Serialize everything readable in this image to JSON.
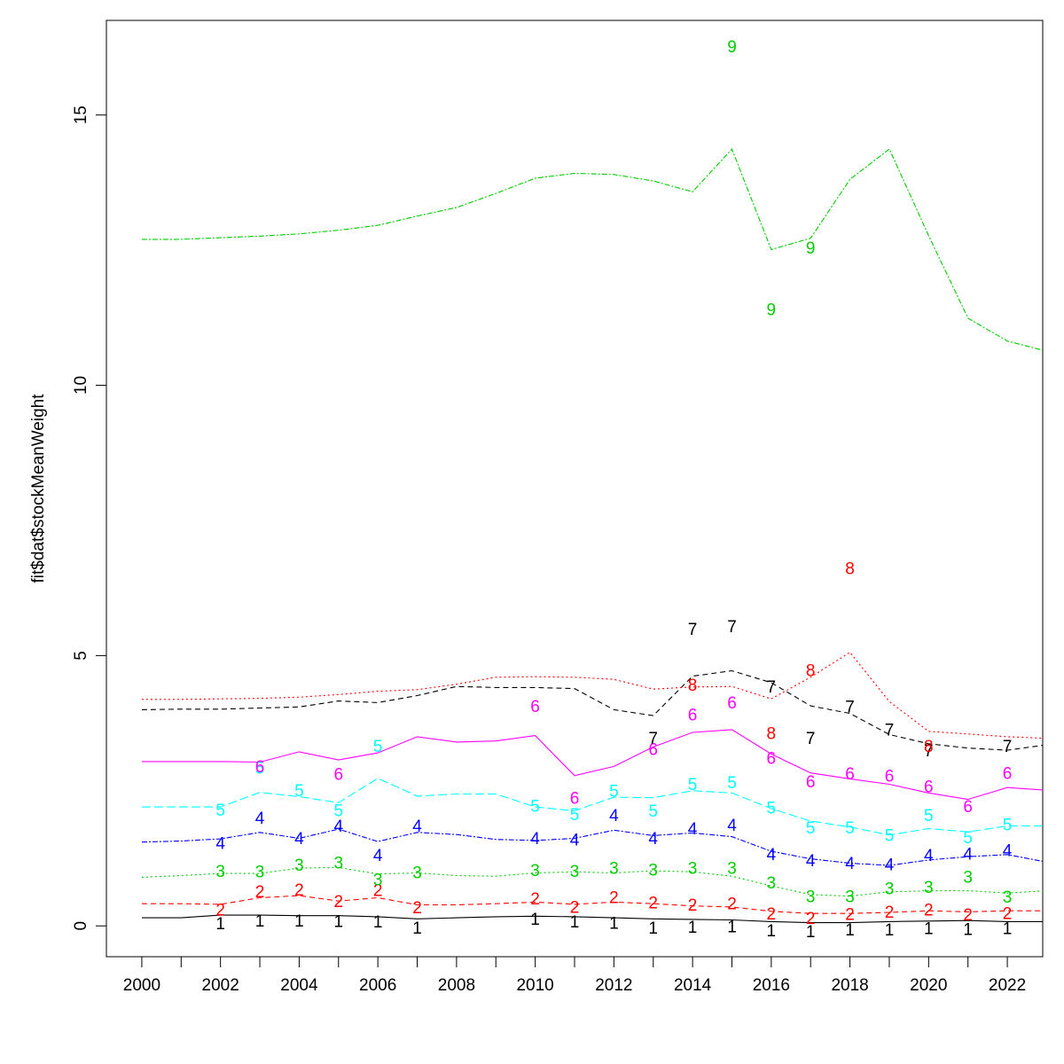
{
  "chart_data": {
    "type": "line",
    "title": "",
    "xlabel": "",
    "ylabel": "fit$dat$stockMeanWeight",
    "xlim": [
      1999.1,
      2022.9
    ],
    "ylim": [
      -0.57,
      16.75
    ],
    "x_ticks": [
      2000,
      2001,
      2002,
      2003,
      2004,
      2005,
      2006,
      2007,
      2008,
      2009,
      2010,
      2011,
      2012,
      2013,
      2014,
      2015,
      2016,
      2017,
      2018,
      2019,
      2020,
      2021,
      2022
    ],
    "x_tick_labels": [
      "2000",
      "",
      "2002",
      "",
      "2004",
      "",
      "2006",
      "",
      "2008",
      "",
      "2010",
      "",
      "2012",
      "",
      "2014",
      "",
      "2016",
      "",
      "2018",
      "",
      "2020",
      "",
      "2022"
    ],
    "y_ticks": [
      0,
      5,
      10,
      15
    ],
    "y_tick_labels": [
      "0",
      "5",
      "10",
      "15"
    ],
    "grid": false,
    "fitted": {
      "x": [
        2000,
        2001,
        2002,
        2003,
        2004,
        2005,
        2006,
        2007,
        2008,
        2009,
        2010,
        2011,
        2012,
        2013,
        2014,
        2015,
        2016,
        2017,
        2018,
        2019,
        2020,
        2021,
        2022,
        2023
      ],
      "series": [
        {
          "name": "1",
          "color": "#000000",
          "dash": "",
          "values": [
            0.15,
            0.15,
            0.2,
            0.2,
            0.19,
            0.19,
            0.17,
            0.13,
            0.15,
            0.17,
            0.18,
            0.17,
            0.15,
            0.13,
            0.12,
            0.11,
            0.08,
            0.06,
            0.06,
            0.08,
            0.09,
            0.1,
            0.08,
            0.08
          ]
        },
        {
          "name": "2",
          "color": "#ff0000",
          "dash": "6,4",
          "values": [
            0.41,
            0.41,
            0.4,
            0.52,
            0.56,
            0.46,
            0.52,
            0.39,
            0.39,
            0.41,
            0.44,
            0.4,
            0.44,
            0.41,
            0.37,
            0.35,
            0.27,
            0.23,
            0.23,
            0.25,
            0.28,
            0.26,
            0.28,
            0.28
          ]
        },
        {
          "name": "3",
          "color": "#00cd00",
          "dash": "2,3",
          "values": [
            0.9,
            0.93,
            0.97,
            0.97,
            1.07,
            1.08,
            0.96,
            0.98,
            0.93,
            0.92,
            0.98,
            1.0,
            0.98,
            1.02,
            1.0,
            0.92,
            0.74,
            0.58,
            0.55,
            0.63,
            0.65,
            0.65,
            0.61,
            0.65
          ]
        },
        {
          "name": "4",
          "color": "#0000ff",
          "dash": "6,2,2,2",
          "values": [
            1.55,
            1.57,
            1.61,
            1.73,
            1.62,
            1.79,
            1.56,
            1.73,
            1.69,
            1.6,
            1.58,
            1.62,
            1.77,
            1.67,
            1.72,
            1.65,
            1.38,
            1.24,
            1.16,
            1.12,
            1.22,
            1.28,
            1.32,
            1.18
          ]
        },
        {
          "name": "5",
          "color": "#00ffff",
          "dash": "10,4",
          "values": [
            2.2,
            2.2,
            2.2,
            2.47,
            2.39,
            2.28,
            2.73,
            2.4,
            2.44,
            2.44,
            2.2,
            2.13,
            2.38,
            2.37,
            2.5,
            2.46,
            2.17,
            1.94,
            1.83,
            1.68,
            1.8,
            1.74,
            1.85,
            1.85
          ]
        },
        {
          "name": "6",
          "color": "#ff00ff",
          "dash": "",
          "values": [
            3.04,
            3.04,
            3.04,
            3.03,
            3.22,
            3.07,
            3.2,
            3.5,
            3.4,
            3.42,
            3.52,
            2.78,
            2.95,
            3.31,
            3.58,
            3.63,
            3.18,
            2.83,
            2.72,
            2.62,
            2.46,
            2.34,
            2.56,
            2.51
          ]
        },
        {
          "name": "7",
          "color": "#000000",
          "dash": "6,4",
          "values": [
            4.0,
            4.01,
            4.01,
            4.03,
            4.05,
            4.16,
            4.13,
            4.26,
            4.43,
            4.41,
            4.41,
            4.39,
            4.0,
            3.89,
            4.62,
            4.72,
            4.5,
            4.07,
            3.93,
            3.54,
            3.37,
            3.29,
            3.25,
            3.35
          ]
        },
        {
          "name": "8",
          "color": "#ff0000",
          "dash": "2,3",
          "values": [
            4.19,
            4.19,
            4.2,
            4.21,
            4.23,
            4.28,
            4.34,
            4.37,
            4.47,
            4.6,
            4.61,
            4.6,
            4.56,
            4.38,
            4.42,
            4.43,
            4.2,
            4.6,
            5.06,
            4.15,
            3.6,
            3.55,
            3.5,
            3.47
          ]
        },
        {
          "name": "9",
          "color": "#00cd00",
          "dash": "6,2,2,2",
          "values": [
            12.7,
            12.7,
            12.73,
            12.76,
            12.8,
            12.87,
            12.96,
            13.13,
            13.29,
            13.55,
            13.83,
            13.92,
            13.9,
            13.78,
            13.58,
            14.37,
            12.51,
            12.72,
            13.81,
            14.37,
            12.77,
            11.24,
            10.82,
            10.63
          ]
        }
      ]
    },
    "observed": [
      {
        "label": "1",
        "color": "#000000",
        "x": [
          2002,
          2003,
          2004,
          2005,
          2006,
          2007,
          2010,
          2011,
          2012,
          2013,
          2014,
          2015,
          2016,
          2017,
          2018,
          2019,
          2020,
          2021,
          2022
        ],
        "values": [
          0.03,
          0.08,
          0.08,
          0.07,
          0.06,
          -0.05,
          0.11,
          0.06,
          0.04,
          -0.05,
          -0.04,
          -0.03,
          -0.1,
          -0.12,
          -0.09,
          -0.09,
          -0.06,
          -0.08,
          -0.06
        ]
      },
      {
        "label": "2",
        "color": "#ff0000",
        "x": [
          2002,
          2003,
          2004,
          2005,
          2006,
          2007,
          2010,
          2011,
          2012,
          2013,
          2014,
          2015,
          2016,
          2017,
          2018,
          2019,
          2020,
          2021,
          2022
        ],
        "values": [
          0.28,
          0.62,
          0.65,
          0.44,
          0.64,
          0.32,
          0.49,
          0.33,
          0.51,
          0.41,
          0.37,
          0.4,
          0.21,
          0.13,
          0.2,
          0.24,
          0.28,
          0.19,
          0.22
        ]
      },
      {
        "label": "3",
        "color": "#00cd00",
        "x": [
          2002,
          2003,
          2004,
          2005,
          2006,
          2007,
          2010,
          2011,
          2012,
          2013,
          2014,
          2015,
          2016,
          2017,
          2018,
          2019,
          2020,
          2021,
          2022
        ],
        "values": [
          1.0,
          0.99,
          1.11,
          1.15,
          0.84,
          0.97,
          1.01,
          1.0,
          1.05,
          1.02,
          1.05,
          1.05,
          0.78,
          0.53,
          0.53,
          0.68,
          0.7,
          0.89,
          0.52
        ]
      },
      {
        "label": "4",
        "color": "#0000ff",
        "x": [
          2002,
          2003,
          2004,
          2005,
          2006,
          2007,
          2010,
          2011,
          2012,
          2013,
          2014,
          2015,
          2016,
          2017,
          2018,
          2019,
          2020,
          2021,
          2022
        ],
        "values": [
          1.51,
          1.98,
          1.6,
          1.83,
          1.29,
          1.83,
          1.6,
          1.58,
          2.03,
          1.6,
          1.78,
          1.85,
          1.31,
          1.19,
          1.14,
          1.12,
          1.29,
          1.32,
          1.38
        ]
      },
      {
        "label": "5",
        "color": "#00ffff",
        "x": [
          2002,
          2003,
          2004,
          2005,
          2006,
          2010,
          2011,
          2012,
          2013,
          2014,
          2015,
          2016,
          2017,
          2018,
          2019,
          2020,
          2021,
          2022
        ],
        "values": [
          2.13,
          2.91,
          2.49,
          2.12,
          3.31,
          2.2,
          2.05,
          2.48,
          2.11,
          2.6,
          2.64,
          2.17,
          1.8,
          1.8,
          1.66,
          2.03,
          1.62,
          1.86
        ]
      },
      {
        "label": "6",
        "color": "#ff00ff",
        "x": [
          2003,
          2005,
          2010,
          2011,
          2013,
          2014,
          2015,
          2016,
          2017,
          2018,
          2019,
          2020,
          2021,
          2022
        ],
        "values": [
          2.93,
          2.79,
          4.05,
          2.35,
          3.25,
          3.89,
          4.11,
          3.09,
          2.65,
          2.8,
          2.76,
          2.56,
          2.19,
          2.81
        ]
      },
      {
        "label": "7",
        "color": "#000000",
        "x": [
          2013,
          2014,
          2015,
          2016,
          2017,
          2018,
          2019,
          2020,
          2022
        ],
        "values": [
          3.46,
          5.47,
          5.52,
          4.41,
          3.46,
          4.04,
          3.61,
          3.23,
          3.31
        ]
      },
      {
        "label": "8",
        "color": "#ff0000",
        "x": [
          2014,
          2016,
          2017,
          2018,
          2020
        ],
        "values": [
          4.44,
          3.55,
          4.71,
          6.6,
          3.31
        ]
      },
      {
        "label": "9",
        "color": "#00cd00",
        "x": [
          2015,
          2016,
          2017
        ],
        "values": [
          16.25,
          11.39,
          12.53
        ]
      }
    ]
  }
}
